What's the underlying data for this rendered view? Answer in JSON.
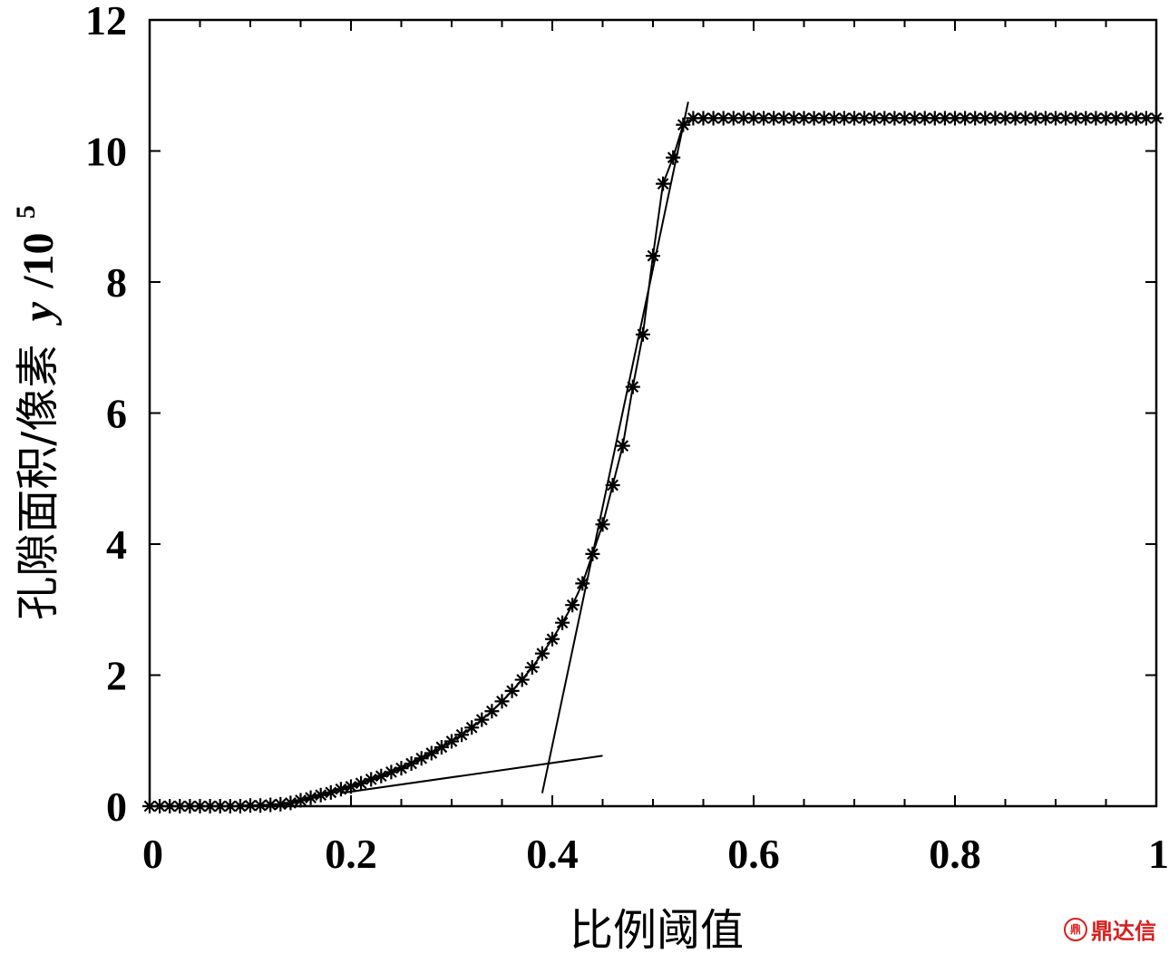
{
  "chart_data": {
    "type": "line",
    "title": "",
    "xlabel": "比例阈值",
    "ylabel": "孔隙面积/像素",
    "ylabel_var": "y",
    "ylabel_unit": "/10",
    "ylabel_exp": "5",
    "xlim": [
      0,
      1
    ],
    "ylim": [
      0,
      12
    ],
    "xticks": [
      0,
      0.2,
      0.4,
      0.6,
      0.8,
      1
    ],
    "xtick_labels": [
      "0",
      "0.2",
      "0.4",
      "0.6",
      "0.8",
      "1"
    ],
    "yticks": [
      0,
      2,
      4,
      6,
      8,
      10,
      12
    ],
    "ytick_labels": [
      "0",
      "2",
      "4",
      "6",
      "8",
      "10",
      "12"
    ],
    "grid": false,
    "legend": "none",
    "series": [
      {
        "marker": "asterisk",
        "x": [
          0.0,
          0.01,
          0.02,
          0.03,
          0.04,
          0.05,
          0.06,
          0.07,
          0.08,
          0.09,
          0.1,
          0.11,
          0.12,
          0.13,
          0.14,
          0.15,
          0.16,
          0.17,
          0.18,
          0.19,
          0.2,
          0.21,
          0.22,
          0.23,
          0.24,
          0.25,
          0.26,
          0.27,
          0.28,
          0.29,
          0.3,
          0.31,
          0.32,
          0.33,
          0.34,
          0.35,
          0.36,
          0.37,
          0.38,
          0.39,
          0.4,
          0.41,
          0.42,
          0.43,
          0.44,
          0.45,
          0.46,
          0.47,
          0.48,
          0.49,
          0.5,
          0.51,
          0.52,
          0.53,
          0.54,
          0.55,
          0.56,
          0.57,
          0.58,
          0.59,
          0.6,
          0.61,
          0.62,
          0.63,
          0.64,
          0.65,
          0.66,
          0.67,
          0.68,
          0.69,
          0.7,
          0.71,
          0.72,
          0.73,
          0.74,
          0.75,
          0.76,
          0.77,
          0.78,
          0.79,
          0.8,
          0.81,
          0.82,
          0.83,
          0.84,
          0.85,
          0.86,
          0.87,
          0.88,
          0.89,
          0.9,
          0.91,
          0.92,
          0.93,
          0.94,
          0.95,
          0.96,
          0.97,
          0.98,
          0.99,
          1.0
        ],
        "y": [
          0.0,
          0.0,
          0.0,
          0.0,
          0.0,
          0.0,
          0.0,
          0.0,
          0.0,
          0.0,
          0.01,
          0.01,
          0.02,
          0.03,
          0.05,
          0.09,
          0.13,
          0.17,
          0.21,
          0.26,
          0.3,
          0.35,
          0.41,
          0.46,
          0.52,
          0.58,
          0.65,
          0.73,
          0.81,
          0.9,
          0.99,
          1.09,
          1.2,
          1.32,
          1.45,
          1.6,
          1.76,
          1.93,
          2.12,
          2.33,
          2.55,
          2.8,
          3.07,
          3.4,
          3.85,
          4.3,
          4.9,
          5.5,
          6.4,
          7.2,
          8.4,
          9.5,
          9.9,
          10.4,
          10.5,
          10.5,
          10.5,
          10.5,
          10.5,
          10.5,
          10.5,
          10.5,
          10.5,
          10.5,
          10.5,
          10.5,
          10.5,
          10.5,
          10.5,
          10.5,
          10.5,
          10.5,
          10.5,
          10.5,
          10.5,
          10.5,
          10.5,
          10.5,
          10.5,
          10.5,
          10.5,
          10.5,
          10.5,
          10.5,
          10.5,
          10.5,
          10.5,
          10.5,
          10.5,
          10.5,
          10.5,
          10.5,
          10.5,
          10.5,
          10.5,
          10.5,
          10.5,
          10.5,
          10.5,
          10.5,
          10.5
        ]
      },
      {
        "marker": "none",
        "x": [
          0.19,
          0.45
        ],
        "y": [
          0.2,
          0.77
        ]
      },
      {
        "marker": "none",
        "x": [
          0.39,
          0.535
        ],
        "y": [
          0.2,
          10.75
        ]
      }
    ]
  },
  "watermark": {
    "logo": "鼎",
    "text": "鼎达信"
  }
}
